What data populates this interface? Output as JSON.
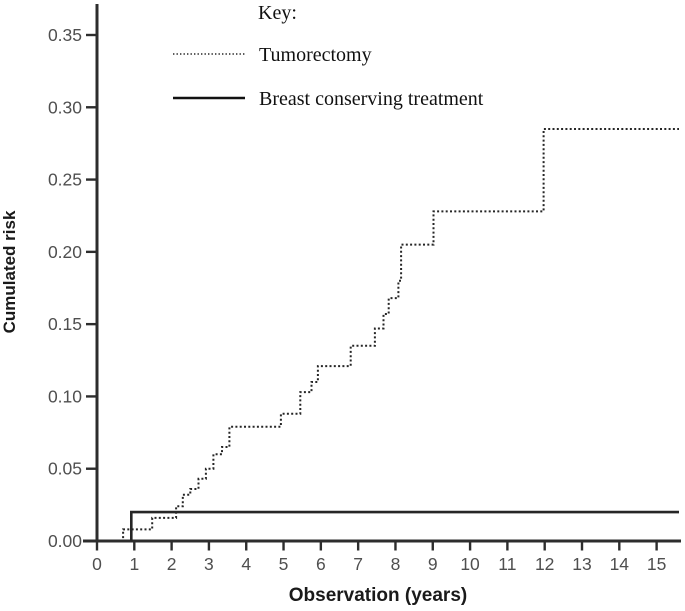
{
  "page": {
    "background": "#ffffff"
  },
  "colors": {
    "axis": "#2d2d2d",
    "tick_label": "#4f4f4f",
    "axis_title": "#1a1a1a",
    "line": "#262626",
    "legend_text": "#111111"
  },
  "chart_data": {
    "type": "line",
    "subtype": "step",
    "title": "",
    "xlabel": "Observation (years)",
    "ylabel": "Cumulated risk",
    "xlim": [
      0,
      15.6
    ],
    "ylim": [
      0,
      0.35
    ],
    "grid": false,
    "x_ticks": {
      "values": [
        0,
        1,
        2,
        3,
        4,
        5,
        6,
        7,
        8,
        9,
        10,
        11,
        12,
        13,
        14,
        15
      ],
      "labels": [
        "0",
        "1",
        "2",
        "3",
        "4",
        "5",
        "6",
        "7",
        "8",
        "9",
        "10",
        "11",
        "12",
        "13",
        "14",
        "15"
      ]
    },
    "y_ticks": {
      "values": [
        0.0,
        0.05,
        0.1,
        0.15,
        0.2,
        0.25,
        0.3,
        0.35
      ],
      "labels": [
        "0.00",
        "0.05",
        "0.10",
        "0.15",
        "0.20",
        "0.25",
        "0.30",
        "0.35"
      ]
    },
    "legend": {
      "title": "Key:",
      "position": "top-center",
      "entries": [
        {
          "label": "Tumorectomy",
          "line_style": "dotted"
        },
        {
          "label": "Breast conserving treatment",
          "line_style": "solid"
        }
      ]
    },
    "series": [
      {
        "name": "Tumorectomy",
        "line_style": "dotted",
        "color": "#262626",
        "points": [
          [
            0.7,
            0.002
          ],
          [
            0.7,
            0.008
          ],
          [
            1.48,
            0.008
          ],
          [
            1.48,
            0.016
          ],
          [
            2.12,
            0.016
          ],
          [
            2.12,
            0.024
          ],
          [
            2.3,
            0.024
          ],
          [
            2.3,
            0.032
          ],
          [
            2.5,
            0.032
          ],
          [
            2.5,
            0.036
          ],
          [
            2.72,
            0.036
          ],
          [
            2.72,
            0.043
          ],
          [
            2.92,
            0.043
          ],
          [
            2.92,
            0.05
          ],
          [
            3.12,
            0.05
          ],
          [
            3.12,
            0.06
          ],
          [
            3.35,
            0.06
          ],
          [
            3.35,
            0.065
          ],
          [
            3.55,
            0.065
          ],
          [
            3.55,
            0.079
          ],
          [
            4.93,
            0.079
          ],
          [
            4.93,
            0.088
          ],
          [
            5.45,
            0.088
          ],
          [
            5.45,
            0.103
          ],
          [
            5.75,
            0.103
          ],
          [
            5.75,
            0.11
          ],
          [
            5.92,
            0.11
          ],
          [
            5.92,
            0.121
          ],
          [
            6.8,
            0.121
          ],
          [
            6.8,
            0.135
          ],
          [
            7.45,
            0.135
          ],
          [
            7.45,
            0.147
          ],
          [
            7.68,
            0.147
          ],
          [
            7.68,
            0.157
          ],
          [
            7.82,
            0.157
          ],
          [
            7.82,
            0.168
          ],
          [
            8.08,
            0.168
          ],
          [
            8.08,
            0.18
          ],
          [
            8.15,
            0.18
          ],
          [
            8.15,
            0.205
          ],
          [
            9.02,
            0.205
          ],
          [
            9.02,
            0.228
          ],
          [
            11.97,
            0.228
          ],
          [
            11.97,
            0.285
          ],
          [
            15.6,
            0.285
          ]
        ]
      },
      {
        "name": "Breast conserving treatment",
        "line_style": "solid",
        "color": "#262626",
        "points": [
          [
            0.92,
            0.0
          ],
          [
            0.92,
            0.02
          ],
          [
            15.6,
            0.02
          ]
        ]
      }
    ]
  }
}
